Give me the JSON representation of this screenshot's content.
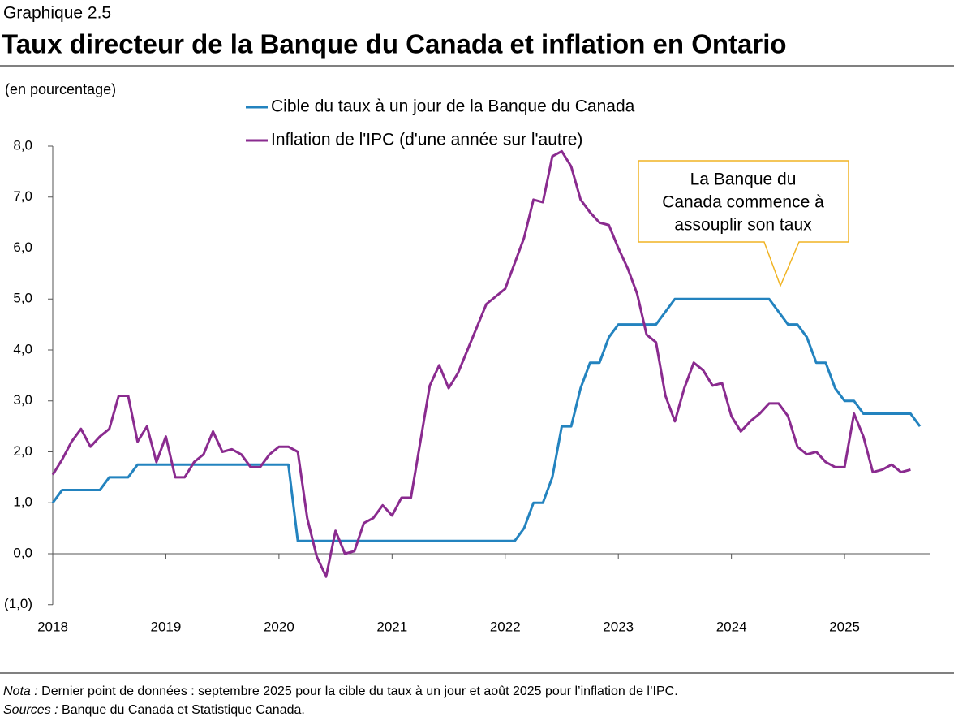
{
  "chart_data": {
    "type": "line",
    "label": "Graphique 2.5",
    "title": "Taux directeur de la Banque du Canada et inflation en Ontario",
    "ylabel": "(en pourcentage)",
    "categories": [
      "2018",
      null,
      null,
      null,
      null,
      null,
      null,
      null,
      null,
      null,
      null,
      null,
      "2019",
      null,
      null,
      null,
      null,
      null,
      null,
      null,
      null,
      null,
      null,
      null,
      "2020",
      null,
      null,
      null,
      null,
      null,
      null,
      null,
      null,
      null,
      null,
      null,
      "2021",
      null,
      null,
      null,
      null,
      null,
      null,
      null,
      null,
      null,
      null,
      null,
      "2022",
      null,
      null,
      null,
      null,
      null,
      null,
      null,
      null,
      null,
      null,
      null,
      "2023",
      null,
      null,
      null,
      null,
      null,
      null,
      null,
      null,
      null,
      null,
      null,
      "2024",
      null,
      null,
      null,
      null,
      null,
      null,
      null,
      null,
      null,
      null,
      null,
      "2025",
      null,
      null,
      null,
      null,
      null,
      null,
      null,
      null
    ],
    "series": [
      {
        "name": "Cible du taux à un jour de la Banque du Canada",
        "color": "#2383bf",
        "values": [
          1.0,
          1.25,
          1.25,
          1.25,
          1.25,
          1.25,
          1.5,
          1.5,
          1.5,
          1.75,
          1.75,
          1.75,
          1.75,
          1.75,
          1.75,
          1.75,
          1.75,
          1.75,
          1.75,
          1.75,
          1.75,
          1.75,
          1.75,
          1.75,
          1.75,
          1.75,
          0.25,
          0.25,
          0.25,
          0.25,
          0.25,
          0.25,
          0.25,
          0.25,
          0.25,
          0.25,
          0.25,
          0.25,
          0.25,
          0.25,
          0.25,
          0.25,
          0.25,
          0.25,
          0.25,
          0.25,
          0.25,
          0.25,
          0.25,
          0.25,
          0.5,
          1.0,
          1.0,
          1.5,
          2.5,
          2.5,
          3.25,
          3.75,
          3.75,
          4.25,
          4.5,
          4.5,
          4.5,
          4.5,
          4.5,
          4.75,
          5.0,
          5.0,
          5.0,
          5.0,
          5.0,
          5.0,
          5.0,
          5.0,
          5.0,
          5.0,
          5.0,
          4.75,
          4.5,
          4.5,
          4.25,
          3.75,
          3.75,
          3.25,
          3.0,
          3.0,
          2.75,
          2.75,
          2.75,
          2.75,
          2.75,
          2.75,
          2.5
        ]
      },
      {
        "name": "Inflation de l'IPC (d'une année sur l'autre)",
        "color": "#8a2b8f",
        "values": [
          1.55,
          1.85,
          2.2,
          2.45,
          2.1,
          2.3,
          2.45,
          3.1,
          3.1,
          2.2,
          2.5,
          1.8,
          2.3,
          1.5,
          1.5,
          1.8,
          1.95,
          2.4,
          2.0,
          2.05,
          1.95,
          1.7,
          1.7,
          1.95,
          2.1,
          2.1,
          2.0,
          0.7,
          -0.05,
          -0.45,
          0.45,
          0.0,
          0.05,
          0.6,
          0.7,
          0.95,
          0.75,
          1.1,
          1.1,
          2.2,
          3.3,
          3.7,
          3.25,
          3.55,
          4.0,
          4.45,
          4.9,
          5.05,
          5.2,
          5.7,
          6.2,
          6.95,
          6.9,
          7.8,
          7.9,
          7.6,
          6.95,
          6.7,
          6.5,
          6.45,
          6.0,
          5.6,
          5.1,
          4.3,
          4.15,
          3.1,
          2.6,
          3.25,
          3.75,
          3.6,
          3.3,
          3.35,
          2.7,
          2.4,
          2.6,
          2.75,
          2.95,
          2.95,
          2.7,
          2.1,
          1.95,
          2.0,
          1.8,
          1.7,
          1.7,
          2.75,
          2.3,
          1.6,
          1.65,
          1.75,
          1.6,
          1.65,
          null
        ]
      }
    ],
    "ylim": [
      -1,
      8
    ],
    "yticks": [
      {
        "value": -1,
        "label": "(1,0)"
      },
      {
        "value": 0,
        "label": "0,0"
      },
      {
        "value": 1,
        "label": "1,0"
      },
      {
        "value": 2,
        "label": "2,0"
      },
      {
        "value": 3,
        "label": "3,0"
      },
      {
        "value": 4,
        "label": "4,0"
      },
      {
        "value": 5,
        "label": "5,0"
      },
      {
        "value": 6,
        "label": "6,0"
      },
      {
        "value": 7,
        "label": "7,0"
      },
      {
        "value": 8,
        "label": "8,0"
      }
    ],
    "grid": false,
    "annotation": {
      "lines": [
        "La Banque du",
        "Canada commence à",
        "assouplir son taux"
      ]
    },
    "notes": [
      {
        "label": "Nota :",
        "text": "Dernier point de données : septembre 2025 pour la cible du taux à un jour et août 2025 pour l’inflation de l’IPC."
      },
      {
        "label": "Sources :",
        "text": "Banque du Canada et Statistique Canada."
      }
    ]
  }
}
